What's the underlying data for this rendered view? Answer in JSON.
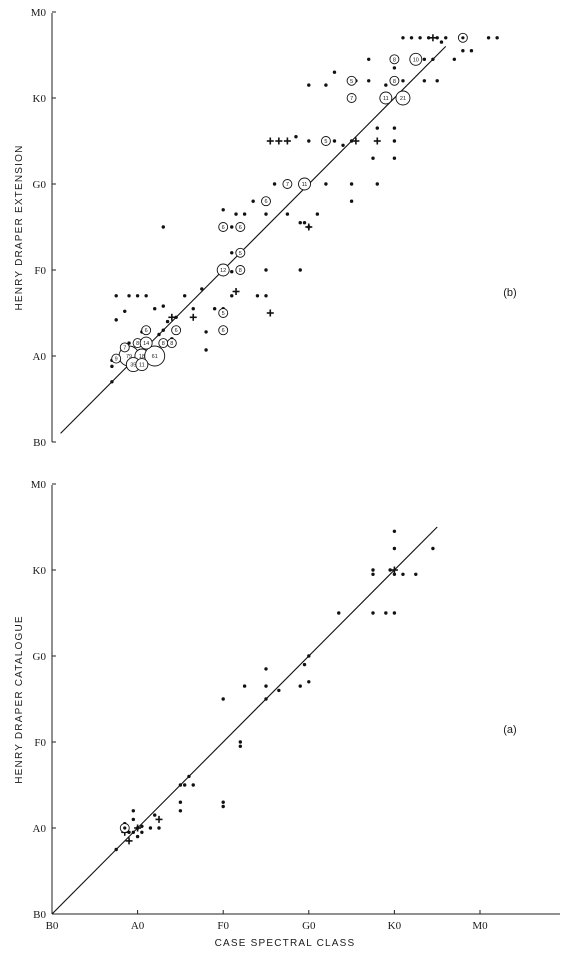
{
  "chart_data": [
    {
      "type": "scatter",
      "panel_label": "(b)",
      "xlabel": "",
      "ylabel": "HENRY DRAPER EXTENSION",
      "x_ticks": [
        "B0",
        "A0",
        "F0",
        "G0",
        "K0",
        "M0"
      ],
      "y_ticks": [
        "B0",
        "A0",
        "F0",
        "G0",
        "K0",
        "M0"
      ],
      "xlim": [
        0,
        5.5
      ],
      "ylim": [
        0,
        5
      ],
      "diagonal": [
        [
          0.1,
          0.1
        ],
        [
          4.6,
          4.6
        ]
      ],
      "points": [
        [
          0.7,
          0.95
        ],
        [
          0.7,
          0.88
        ],
        [
          0.7,
          0.7
        ],
        [
          0.9,
          1.08
        ],
        [
          0.9,
          1.15
        ],
        [
          1.0,
          1.05
        ],
        [
          1.05,
          1.28
        ],
        [
          1.1,
          1.3
        ],
        [
          1.2,
          1.07
        ],
        [
          1.25,
          1.25
        ],
        [
          1.3,
          1.3
        ],
        [
          1.35,
          1.4
        ],
        [
          0.75,
          1.42
        ],
        [
          0.85,
          1.52
        ],
        [
          0.75,
          1.7
        ],
        [
          0.9,
          1.7
        ],
        [
          1.0,
          1.7
        ],
        [
          1.1,
          1.7
        ],
        [
          1.3,
          1.58
        ],
        [
          1.45,
          1.45
        ],
        [
          1.55,
          1.7
        ],
        [
          1.65,
          1.55
        ],
        [
          1.75,
          1.78
        ],
        [
          1.2,
          1.55
        ],
        [
          1.4,
          1.2
        ],
        [
          1.8,
          1.07
        ],
        [
          1.8,
          1.28
        ],
        [
          2.0,
          1.55
        ],
        [
          2.1,
          1.7
        ],
        [
          2.0,
          2.0
        ],
        [
          2.1,
          1.98
        ],
        [
          2.2,
          2.0
        ],
        [
          1.3,
          2.5
        ],
        [
          1.9,
          1.55
        ],
        [
          2.1,
          2.5
        ],
        [
          2.1,
          2.2
        ],
        [
          2.0,
          2.7
        ],
        [
          2.15,
          2.65
        ],
        [
          2.25,
          2.65
        ],
        [
          2.35,
          2.8
        ],
        [
          2.4,
          1.7
        ],
        [
          2.5,
          1.7
        ],
        [
          2.5,
          2.0
        ],
        [
          2.5,
          2.65
        ],
        [
          2.5,
          2.8
        ],
        [
          2.6,
          3.0
        ],
        [
          2.75,
          2.65
        ],
        [
          2.9,
          2.55
        ],
        [
          2.9,
          2.0
        ],
        [
          2.95,
          2.55
        ],
        [
          3.0,
          2.5
        ],
        [
          3.1,
          2.65
        ],
        [
          3.2,
          3.0
        ],
        [
          2.95,
          3.0
        ],
        [
          3.0,
          3.5
        ],
        [
          3.3,
          3.5
        ],
        [
          3.5,
          3.5
        ],
        [
          3.4,
          3.45
        ],
        [
          3.55,
          4.2
        ],
        [
          3.75,
          3.3
        ],
        [
          3.8,
          3.0
        ],
        [
          4.0,
          3.3
        ],
        [
          4.0,
          3.5
        ],
        [
          4.0,
          3.65
        ],
        [
          4.1,
          4.2
        ],
        [
          4.1,
          4.0
        ],
        [
          4.35,
          4.45
        ],
        [
          4.5,
          4.2
        ],
        [
          4.1,
          4.7
        ],
        [
          4.2,
          4.7
        ],
        [
          4.3,
          4.7
        ],
        [
          4.4,
          4.7
        ],
        [
          4.5,
          4.7
        ],
        [
          4.55,
          4.65
        ],
        [
          4.8,
          4.55
        ],
        [
          4.9,
          4.55
        ],
        [
          5.1,
          4.7
        ],
        [
          5.2,
          4.7
        ],
        [
          4.7,
          4.45
        ],
        [
          2.85,
          3.55
        ],
        [
          3.0,
          4.15
        ],
        [
          3.5,
          3.0
        ],
        [
          3.5,
          2.8
        ],
        [
          3.8,
          3.65
        ],
        [
          3.9,
          4.15
        ],
        [
          4.0,
          4.35
        ],
        [
          4.25,
          4.45
        ],
        [
          4.35,
          4.2
        ],
        [
          4.45,
          4.45
        ],
        [
          3.7,
          4.2
        ],
        [
          3.7,
          4.45
        ],
        [
          4.6,
          4.7
        ],
        [
          3.2,
          4.15
        ],
        [
          3.3,
          4.3
        ]
      ],
      "crosses": [
        [
          0.95,
          1.05
        ],
        [
          1.4,
          1.45
        ],
        [
          1.65,
          1.45
        ],
        [
          2.15,
          1.75
        ],
        [
          2.55,
          1.5
        ],
        [
          2.55,
          3.5
        ],
        [
          2.75,
          3.5
        ],
        [
          3.0,
          2.5
        ],
        [
          3.55,
          3.5
        ],
        [
          3.8,
          3.5
        ],
        [
          4.45,
          4.7
        ],
        [
          2.65,
          3.5
        ]
      ],
      "labelled": [
        {
          "x": 0.9,
          "y": 1.0,
          "n": "79"
        },
        {
          "x": 1.05,
          "y": 1.0,
          "n": "18"
        },
        {
          "x": 1.2,
          "y": 1.0,
          "n": "61"
        },
        {
          "x": 0.95,
          "y": 0.9,
          "n": "35"
        },
        {
          "x": 1.05,
          "y": 0.9,
          "n": "11"
        },
        {
          "x": 0.75,
          "y": 0.97,
          "n": "9"
        },
        {
          "x": 0.85,
          "y": 1.1,
          "n": "7"
        },
        {
          "x": 1.0,
          "y": 1.15,
          "n": "8"
        },
        {
          "x": 1.1,
          "y": 1.15,
          "n": "14"
        },
        {
          "x": 1.3,
          "y": 1.15,
          "n": "8"
        },
        {
          "x": 1.4,
          "y": 1.15,
          "n": "8"
        },
        {
          "x": 1.1,
          "y": 1.3,
          "n": "6"
        },
        {
          "x": 1.45,
          "y": 1.3,
          "n": "6"
        },
        {
          "x": 2.0,
          "y": 1.5,
          "n": "5"
        },
        {
          "x": 2.0,
          "y": 1.3,
          "n": "6"
        },
        {
          "x": 2.0,
          "y": 2.0,
          "n": "12"
        },
        {
          "x": 2.2,
          "y": 2.0,
          "n": "8"
        },
        {
          "x": 2.2,
          "y": 2.2,
          "n": "5"
        },
        {
          "x": 2.0,
          "y": 2.5,
          "n": "6"
        },
        {
          "x": 2.2,
          "y": 2.5,
          "n": "6"
        },
        {
          "x": 2.5,
          "y": 2.8,
          "n": "6"
        },
        {
          "x": 2.75,
          "y": 3.0,
          "n": "7"
        },
        {
          "x": 2.95,
          "y": 3.0,
          "n": "11"
        },
        {
          "x": 3.2,
          "y": 3.5,
          "n": "5"
        },
        {
          "x": 3.5,
          "y": 4.0,
          "n": "7"
        },
        {
          "x": 3.5,
          "y": 4.2,
          "n": "5"
        },
        {
          "x": 3.9,
          "y": 4.0,
          "n": "11"
        },
        {
          "x": 4.1,
          "y": 4.0,
          "n": "21"
        },
        {
          "x": 4.0,
          "y": 4.2,
          "n": "8"
        },
        {
          "x": 4.0,
          "y": 4.45,
          "n": "8"
        },
        {
          "x": 4.25,
          "y": 4.45,
          "n": "10"
        },
        {
          "x": 4.8,
          "y": 4.7,
          "n": ""
        }
      ]
    },
    {
      "type": "scatter",
      "panel_label": "(a)",
      "xlabel": "CASE SPECTRAL CLASS",
      "ylabel": "HENRY DRAPER CATALOGUE",
      "x_ticks": [
        "B0",
        "A0",
        "F0",
        "G0",
        "K0",
        "M0"
      ],
      "y_ticks": [
        "B0",
        "A0",
        "F0",
        "G0",
        "K0",
        "M0"
      ],
      "xlim": [
        0,
        5.5
      ],
      "ylim": [
        0,
        5
      ],
      "diagonal": [
        [
          0.0,
          0.0
        ],
        [
          4.5,
          4.5
        ]
      ],
      "points": [
        [
          0.85,
          1.05
        ],
        [
          0.9,
          0.95
        ],
        [
          0.95,
          1.1
        ],
        [
          0.95,
          0.95
        ],
        [
          1.0,
          1.0
        ],
        [
          1.05,
          0.95
        ],
        [
          1.05,
          1.02
        ],
        [
          1.0,
          0.9
        ],
        [
          0.95,
          1.2
        ],
        [
          1.15,
          1.0
        ],
        [
          1.25,
          1.0
        ],
        [
          1.2,
          1.15
        ],
        [
          1.55,
          1.5
        ],
        [
          1.5,
          1.5
        ],
        [
          1.65,
          1.5
        ],
        [
          2.0,
          1.25
        ],
        [
          2.0,
          1.3
        ],
        [
          1.5,
          1.2
        ],
        [
          1.5,
          1.3
        ],
        [
          2.2,
          1.95
        ],
        [
          2.2,
          2.0
        ],
        [
          2.25,
          2.65
        ],
        [
          2.5,
          2.65
        ],
        [
          2.5,
          2.85
        ],
        [
          2.9,
          2.65
        ],
        [
          2.95,
          2.9
        ],
        [
          3.0,
          3.0
        ],
        [
          3.35,
          3.5
        ],
        [
          3.75,
          3.5
        ],
        [
          3.75,
          3.95
        ],
        [
          3.75,
          4.0
        ],
        [
          3.9,
          3.5
        ],
        [
          4.0,
          3.5
        ],
        [
          3.95,
          4.0
        ],
        [
          4.1,
          3.95
        ],
        [
          4.0,
          4.25
        ],
        [
          4.0,
          4.45
        ],
        [
          4.25,
          3.95
        ],
        [
          4.45,
          4.25
        ],
        [
          2.0,
          2.5
        ],
        [
          2.5,
          2.5
        ],
        [
          0.75,
          0.75
        ],
        [
          2.65,
          2.6
        ],
        [
          3.0,
          2.7
        ],
        [
          4.0,
          3.95
        ],
        [
          1.6,
          1.6
        ]
      ],
      "crosses": [
        [
          0.85,
          0.95
        ],
        [
          0.9,
          0.85
        ],
        [
          1.25,
          1.1
        ],
        [
          4.0,
          4.0
        ],
        [
          1.0,
          1.0
        ]
      ],
      "labelled": [
        {
          "x": 0.85,
          "y": 1.0,
          "n": ""
        }
      ]
    }
  ]
}
